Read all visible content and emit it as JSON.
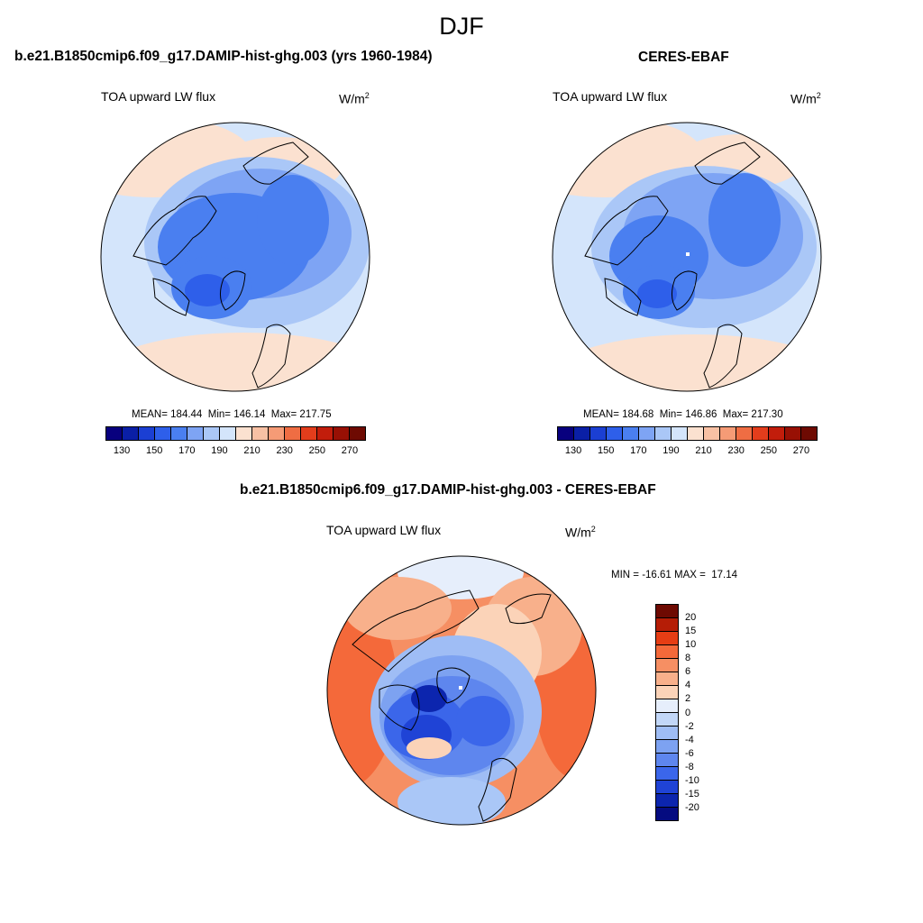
{
  "season": "DJF",
  "panels": {
    "model": {
      "title": "b.e21.B1850cmip6.f09_g17.DAMIP-hist-ghg.003 (yrs 1960-1984)",
      "variable": "TOA upward LW flux",
      "units_base": "W/m",
      "units_exp": "2",
      "mean_label": "MEAN=",
      "mean": "184.44",
      "min_label": "Min=",
      "min": "146.14",
      "max_label": "Max=",
      "max": "217.75"
    },
    "obs": {
      "title": "CERES-EBAF",
      "variable": "TOA upward LW flux",
      "units_base": "W/m",
      "units_exp": "2",
      "mean_label": "MEAN=",
      "mean": "184.68",
      "min_label": "Min=",
      "min": "146.86",
      "max_label": "Max=",
      "max": "217.30"
    },
    "diff": {
      "title": "b.e21.B1850cmip6.f09_g17.DAMIP-hist-ghg.003 - CERES-EBAF",
      "variable": "TOA upward LW flux",
      "units_base": "W/m",
      "units_exp": "2",
      "min_label": "MIN =",
      "min": "-16.61",
      "max_label": "MAX =",
      "max": "17.14"
    }
  },
  "abs_colorbar": {
    "colors": [
      "#08007e",
      "#0a1fa6",
      "#1b3fd3",
      "#2e5fea",
      "#4a7ff0",
      "#7ea4f4",
      "#aac7f7",
      "#d4e5fb",
      "#fbe1d0",
      "#f8c1a4",
      "#f59b76",
      "#ef6d43",
      "#e33d1c",
      "#c21d0b",
      "#981004",
      "#6e0a02"
    ],
    "tick_labels": [
      "130",
      "150",
      "170",
      "190",
      "210",
      "230",
      "250",
      "270"
    ]
  },
  "diff_colorbar": {
    "colors": [
      "#6e0a02",
      "#b51d06",
      "#e63d14",
      "#f4693a",
      "#f68f63",
      "#f8b08b",
      "#fbd3b8",
      "#e6eefb",
      "#c2d7f8",
      "#9fbdf5",
      "#7da2f1",
      "#5e86ee",
      "#3b66ea",
      "#1f43d6",
      "#0c25ae",
      "#050b80"
    ],
    "tick_labels": [
      "20",
      "15",
      "10",
      "8",
      "6",
      "4",
      "2",
      "0",
      "-2",
      "-4",
      "-6",
      "-8",
      "-10",
      "-15",
      "-20"
    ]
  }
}
